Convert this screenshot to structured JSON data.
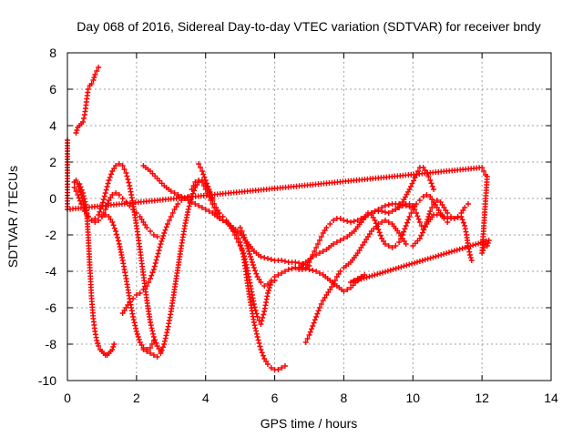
{
  "chart_data": {
    "type": "scatter",
    "title": "Day 068 of 2016, Sidereal Day-to-day VTEC variation (SDTVAR) for receiver bndy",
    "xlabel": "GPS time / hours",
    "ylabel": "SDTVAR / TECUs",
    "xlim": [
      0,
      14
    ],
    "ylim": [
      -10,
      8
    ],
    "xticks": [
      "0",
      "2",
      "4",
      "6",
      "8",
      "10",
      "12",
      "14"
    ],
    "yticks": [
      "8",
      "6",
      "4",
      "2",
      "0",
      "-2",
      "-4",
      "-6",
      "-8",
      "-10"
    ],
    "grid": true,
    "marker": "+",
    "series_color": "#ff0000",
    "series": [
      {
        "name": "s1",
        "x": [
          0.25,
          0.3,
          0.35,
          0.4,
          0.45,
          0.5,
          0.55,
          0.6,
          0.65,
          0.7,
          0.75,
          0.8,
          0.85,
          0.9
        ],
        "y": [
          3.6,
          3.9,
          4.0,
          4.1,
          4.2,
          4.6,
          5.3,
          6.0,
          6.2,
          6.3,
          6.5,
          6.8,
          7.0,
          7.2
        ]
      },
      {
        "name": "s2",
        "x": [
          0.25,
          0.35,
          0.45,
          0.55,
          0.6,
          0.65,
          0.7,
          0.75,
          0.8,
          0.85,
          0.9,
          0.95,
          1.0,
          1.05,
          1.1,
          1.15,
          1.2,
          1.25,
          1.3,
          1.35
        ],
        "y": [
          1.0,
          0.8,
          0.3,
          -0.5,
          -2.0,
          -3.8,
          -5.5,
          -6.6,
          -7.3,
          -7.8,
          -8.1,
          -8.3,
          -8.4,
          -8.5,
          -8.6,
          -8.6,
          -8.5,
          -8.4,
          -8.3,
          -8.0
        ]
      },
      {
        "name": "s3",
        "x": [
          0.2,
          0.3,
          0.4,
          0.5,
          0.6,
          0.7,
          0.8,
          0.9,
          1.0,
          1.1,
          1.2,
          1.3,
          1.4,
          1.5,
          1.6,
          1.7,
          1.8,
          1.9,
          2.0,
          2.1,
          2.2,
          2.3,
          2.4,
          2.5,
          2.6
        ],
        "y": [
          0.6,
          0.2,
          -0.3,
          -0.7,
          -1.0,
          -1.2,
          -1.3,
          -1.2,
          -1.0,
          -0.6,
          -0.1,
          0.2,
          0.3,
          0.2,
          0.0,
          -0.2,
          -0.4,
          -0.6,
          -0.8,
          -1.0,
          -1.3,
          -1.6,
          -1.8,
          -2.0,
          -2.1
        ]
      },
      {
        "name": "s4",
        "x": [
          0.2,
          0.3,
          0.4,
          0.5,
          0.6,
          0.7,
          0.8,
          0.9,
          1.0,
          1.1,
          1.2,
          1.3,
          1.4,
          1.5,
          1.6,
          1.7,
          1.8,
          1.9,
          2.0,
          2.1,
          2.2,
          2.3,
          2.4,
          2.5,
          2.6,
          2.7
        ],
        "y": [
          0.9,
          0.8,
          0.2,
          -0.5,
          -1.0,
          -1.2,
          -1.1,
          -0.9,
          -0.4,
          0.3,
          1.0,
          1.5,
          1.8,
          1.9,
          1.8,
          1.4,
          0.7,
          -0.3,
          -1.5,
          -2.8,
          -4.2,
          -5.6,
          -6.8,
          -7.6,
          -8.1,
          -8.4
        ]
      },
      {
        "name": "s5",
        "x": [
          1.6,
          1.7,
          1.8,
          1.9,
          2.0,
          2.1,
          2.2,
          2.3,
          2.4,
          2.5,
          2.6,
          2.7,
          2.8,
          2.9,
          3.0,
          3.1,
          3.2,
          3.3,
          3.4,
          3.5
        ],
        "y": [
          -6.3,
          -6.0,
          -5.7,
          -5.5,
          -5.3,
          -5.2,
          -5.0,
          -4.8,
          -4.4,
          -3.9,
          -3.2,
          -2.5,
          -1.9,
          -1.4,
          -1.0,
          -0.6,
          -0.3,
          -0.1,
          0.0,
          0.1
        ]
      },
      {
        "name": "s6",
        "x": [
          1.0,
          1.1,
          1.2,
          1.3,
          1.4,
          1.5,
          1.6,
          1.7,
          1.8,
          1.9,
          2.0,
          2.1,
          2.2,
          2.3,
          2.4,
          2.5
        ],
        "y": [
          -1.0,
          -0.9,
          -1.0,
          -1.3,
          -1.8,
          -2.5,
          -3.4,
          -4.4,
          -5.5,
          -6.5,
          -7.3,
          -7.9,
          -8.2,
          -8.3,
          -8.2,
          -7.8
        ]
      },
      {
        "name": "s7",
        "x": [
          2.2,
          2.3,
          2.4,
          2.5,
          2.6,
          2.7,
          2.8,
          2.9,
          3.0,
          3.1,
          3.2,
          3.3,
          3.4,
          3.5,
          3.6,
          3.7,
          3.8,
          3.9,
          4.0,
          4.1,
          4.2
        ],
        "y": [
          -8.3,
          -8.4,
          -8.5,
          -8.6,
          -8.7,
          -8.5,
          -8.0,
          -7.2,
          -6.2,
          -5.0,
          -3.8,
          -2.6,
          -1.5,
          -0.6,
          0.1,
          0.6,
          0.9,
          1.0,
          0.8,
          0.4,
          0.0
        ]
      },
      {
        "name": "s8",
        "x": [
          2.2,
          2.4,
          2.6,
          2.8,
          3.0,
          3.2,
          3.4,
          3.6,
          3.8,
          4.0,
          4.2,
          4.4,
          4.6,
          4.8,
          5.0,
          5.2,
          5.4,
          5.6,
          5.8,
          6.0,
          6.2,
          6.4,
          6.6,
          6.8,
          7.0
        ],
        "y": [
          1.8,
          1.5,
          1.1,
          0.7,
          0.4,
          0.2,
          0.0,
          -0.2,
          -0.4,
          -0.6,
          -0.8,
          -1.1,
          -1.3,
          -1.6,
          -1.9,
          -2.4,
          -2.9,
          -3.2,
          -3.3,
          -3.4,
          -3.4,
          -3.5,
          -3.5,
          -3.6,
          -3.7
        ]
      },
      {
        "name": "s9",
        "x": [
          3.8,
          3.9,
          4.0,
          4.1,
          4.2,
          4.3,
          4.4,
          4.5,
          4.6,
          4.7,
          4.8,
          4.9,
          5.0,
          5.1,
          5.2,
          5.3,
          5.4,
          5.5,
          5.6,
          5.7,
          5.8,
          5.9,
          6.0,
          6.1,
          6.2,
          6.3
        ],
        "y": [
          1.9,
          1.5,
          1.0,
          0.5,
          -0.1,
          -0.5,
          -0.8,
          -1.0,
          -1.2,
          -1.5,
          -1.7,
          -2.0,
          -2.4,
          -3.2,
          -4.5,
          -5.7,
          -6.8,
          -7.6,
          -8.3,
          -8.8,
          -9.1,
          -9.3,
          -9.4,
          -9.4,
          -9.3,
          -9.2
        ]
      },
      {
        "name": "s10",
        "x": [
          3.6,
          3.7,
          3.8,
          3.9,
          4.0,
          4.1,
          4.2,
          4.3,
          4.4,
          4.5,
          4.6,
          4.7,
          4.8,
          4.9,
          5.0,
          5.1,
          5.2,
          5.3,
          5.4,
          5.5,
          5.6,
          5.7,
          5.8,
          5.9,
          6.0
        ],
        "y": [
          0.5,
          0.9,
          1.0,
          0.9,
          0.5,
          0.1,
          -0.3,
          -0.7,
          -1.0,
          -1.2,
          -1.3,
          -1.5,
          -1.8,
          -2.2,
          -2.6,
          -3.0,
          -3.8,
          -4.8,
          -5.8,
          -6.5,
          -6.9,
          -6.2,
          -5.2,
          -4.6,
          -4.5
        ]
      },
      {
        "name": "s11",
        "x": [
          5.0,
          5.1,
          5.2,
          5.3,
          5.4,
          5.5,
          5.6,
          5.7,
          5.8,
          5.9,
          6.0,
          6.2,
          6.4,
          6.6,
          6.8,
          7.0,
          7.2,
          7.4,
          7.6,
          7.8,
          8.0,
          8.2,
          8.4,
          8.6
        ],
        "y": [
          -1.6,
          -2.0,
          -2.6,
          -3.2,
          -3.8,
          -4.3,
          -4.6,
          -4.8,
          -4.7,
          -4.5,
          -4.3,
          -4.1,
          -3.9,
          -3.8,
          -3.8,
          -3.9,
          -4.0,
          -4.2,
          -4.5,
          -4.8,
          -5.1,
          -4.9,
          -4.5,
          -4.2
        ]
      },
      {
        "name": "s12",
        "x": [
          6.6,
          6.7,
          6.8,
          6.9,
          7.0,
          7.1,
          7.2,
          7.3,
          7.4,
          7.5,
          7.6,
          7.7,
          7.8,
          7.9,
          8.0,
          8.2,
          8.4,
          8.6,
          8.8,
          9.0,
          9.2,
          9.4,
          9.6,
          9.8,
          10.0
        ],
        "y": [
          -3.8,
          -3.9,
          -3.9,
          -3.8,
          -3.5,
          -3.1,
          -2.7,
          -2.3,
          -1.9,
          -1.6,
          -1.4,
          -1.2,
          -1.1,
          -1.1,
          -1.2,
          -1.3,
          -1.2,
          -1.0,
          -0.8,
          -0.6,
          -0.4,
          -0.3,
          -0.3,
          -0.4,
          -0.5
        ]
      },
      {
        "name": "s13",
        "x": [
          6.9,
          7.0,
          7.1,
          7.2,
          7.3,
          7.4,
          7.5,
          7.6,
          7.7,
          7.8,
          7.9,
          8.0,
          8.2,
          8.4,
          8.6,
          8.8,
          9.0,
          9.2,
          9.4,
          9.6,
          9.8
        ],
        "y": [
          -7.9,
          -7.5,
          -7.0,
          -6.5,
          -6.0,
          -5.6,
          -5.3,
          -5.0,
          -4.7,
          -4.3,
          -4.0,
          -3.8,
          -3.5,
          -3.0,
          -2.4,
          -1.8,
          -1.4,
          -1.2,
          -1.4,
          -1.9,
          -2.5
        ]
      },
      {
        "name": "s14",
        "x": [
          6.7,
          6.9,
          7.1,
          7.3,
          7.5,
          7.7,
          7.9,
          8.1,
          8.3,
          8.5,
          8.7,
          8.9,
          9.1,
          9.3,
          9.5,
          9.7,
          9.9,
          10.1,
          10.2,
          10.3,
          10.4,
          10.5,
          10.6
        ],
        "y": [
          -3.8,
          -3.5,
          -3.2,
          -3.0,
          -2.8,
          -2.5,
          -2.3,
          -2.1,
          -1.8,
          -1.3,
          -0.9,
          -0.7,
          -0.7,
          -0.8,
          -0.6,
          -0.2,
          0.5,
          1.3,
          1.7,
          1.7,
          1.4,
          1.0,
          0.5
        ]
      },
      {
        "name": "s15",
        "x": [
          8.5,
          8.6,
          8.7,
          8.8,
          8.9,
          9.0,
          9.1,
          9.2,
          9.3,
          9.4,
          9.5,
          9.6,
          9.7,
          9.8,
          9.9,
          10.0,
          10.1,
          10.2,
          10.3,
          10.4,
          10.5,
          10.6,
          10.7,
          10.8,
          10.9,
          11.0
        ],
        "y": [
          -1.3,
          -1.0,
          -0.8,
          -0.9,
          -1.2,
          -1.7,
          -2.2,
          -2.5,
          -2.6,
          -2.7,
          -2.6,
          -2.4,
          -2.0,
          -1.5,
          -1.0,
          -0.6,
          -0.3,
          -0.1,
          0.1,
          0.2,
          0.1,
          -0.2,
          -0.5,
          -0.8,
          -1.1,
          -1.3
        ]
      },
      {
        "name": "s16",
        "x": [
          9.5,
          9.6,
          9.7,
          9.8,
          9.9,
          10.0,
          10.1,
          10.2,
          10.3,
          10.4,
          10.5,
          10.6,
          10.7,
          10.8,
          10.9,
          11.0,
          11.1,
          11.2,
          11.3,
          11.4,
          11.5,
          11.6
        ],
        "y": [
          -0.6,
          -0.5,
          -0.4,
          -0.3,
          -0.3,
          -0.4,
          -0.8,
          -1.3,
          -1.7,
          -1.3,
          -0.7,
          -0.3,
          -0.1,
          -0.2,
          -0.5,
          -0.8,
          -1.0,
          -1.1,
          -1.0,
          -0.8,
          -0.5,
          -0.3
        ]
      },
      {
        "name": "s17",
        "x": [
          10.0,
          10.2,
          10.4,
          10.6,
          10.8,
          11.0,
          11.2,
          11.4,
          11.5,
          11.55,
          11.6,
          11.65,
          11.7
        ],
        "y": [
          -2.6,
          -2.2,
          -1.4,
          -0.9,
          -0.9,
          -1.1,
          -1.1,
          -1.0,
          -1.5,
          -2.0,
          -2.6,
          -3.1,
          -3.4
        ]
      },
      {
        "name": "s18",
        "x": [
          0.0,
          0.0,
          0.0,
          12.0,
          12.05,
          12.1,
          12.15,
          12.0,
          12.05,
          12.1,
          12.15,
          12.2,
          8.2,
          8.3,
          8.4,
          8.5
        ],
        "y": [
          3.2,
          1.4,
          -0.6,
          1.7,
          1.5,
          1.3,
          1.2,
          -3.0,
          -2.7,
          -2.5,
          -2.6,
          -2.3,
          -4.6,
          -4.5,
          -4.4,
          -4.3
        ]
      }
    ]
  }
}
